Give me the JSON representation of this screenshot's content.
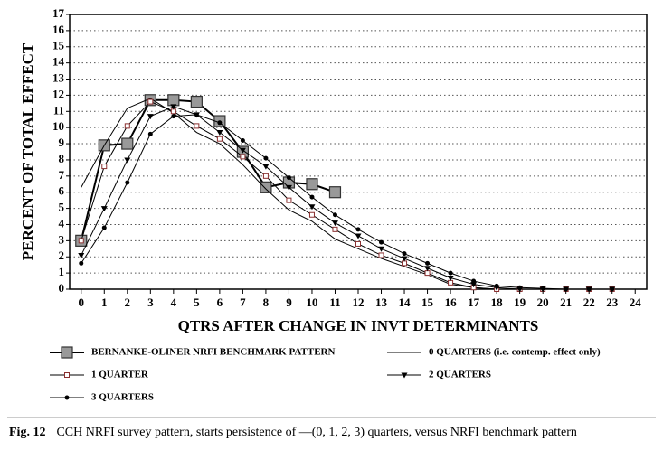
{
  "chart_data": {
    "type": "line",
    "x_label": "QTRS AFTER CHANGE IN INVT DETERMINANTS",
    "y_label": "PERCENT OF TOTAL EFFECT",
    "x": [
      0,
      1,
      2,
      3,
      4,
      5,
      6,
      7,
      8,
      9,
      10,
      11,
      12,
      13,
      14,
      15,
      16,
      17,
      18,
      19,
      20,
      21,
      22,
      23
    ],
    "xlim": [
      -0.5,
      24.5
    ],
    "xticks": [
      0,
      1,
      2,
      3,
      4,
      5,
      6,
      7,
      8,
      9,
      10,
      11,
      12,
      13,
      14,
      15,
      16,
      17,
      18,
      19,
      20,
      21,
      22,
      23,
      24
    ],
    "ylim": [
      0,
      17
    ],
    "yticks": [
      0,
      1,
      2,
      3,
      4,
      5,
      6,
      7,
      8,
      9,
      10,
      11,
      12,
      13,
      14,
      15,
      16,
      17
    ],
    "grid": true,
    "series": [
      {
        "name": "BERNANKE-OLINER NRFI BENCHMARK PATTERN",
        "color": "#000000",
        "marker": "big-square",
        "values": [
          3.0,
          8.9,
          9.0,
          11.7,
          11.7,
          11.6,
          10.4,
          8.5,
          6.3,
          6.6,
          6.5,
          6.0,
          null,
          null,
          null,
          null,
          null,
          null,
          null,
          null,
          null,
          null,
          null,
          null
        ]
      },
      {
        "name": "0 QUARTERS (i.e. contemp. effect only)",
        "color": "#000000",
        "marker": "none",
        "values": [
          6.3,
          8.9,
          11.2,
          11.8,
          10.9,
          9.7,
          9.0,
          7.7,
          6.2,
          4.9,
          4.2,
          3.1,
          2.5,
          1.9,
          1.4,
          0.9,
          0.3,
          0.1,
          0,
          0,
          0,
          0,
          0,
          0
        ]
      },
      {
        "name": "1 QUARTER",
        "color": "#000000",
        "marker": "open-square",
        "values": [
          3.0,
          7.6,
          10.1,
          11.6,
          11.0,
          10.1,
          9.3,
          8.2,
          7.0,
          5.5,
          4.6,
          3.7,
          2.8,
          2.1,
          1.6,
          1.0,
          0.4,
          0.1,
          0,
          0,
          0,
          0,
          0,
          0
        ]
      },
      {
        "name": "2 QUARTERS",
        "color": "#000000",
        "marker": "triangle",
        "values": [
          2.1,
          5.0,
          8.0,
          10.7,
          11.3,
          10.8,
          9.7,
          8.6,
          7.6,
          6.3,
          5.1,
          4.1,
          3.3,
          2.5,
          1.9,
          1.3,
          0.7,
          0.3,
          0.1,
          0,
          0,
          0,
          0,
          0
        ]
      },
      {
        "name": "3 QUARTERS",
        "color": "#000000",
        "marker": "dot",
        "values": [
          1.6,
          3.8,
          6.6,
          9.6,
          10.7,
          10.8,
          10.3,
          9.2,
          8.1,
          6.9,
          5.7,
          4.6,
          3.7,
          2.9,
          2.2,
          1.6,
          1.0,
          0.5,
          0.2,
          0.1,
          0.05,
          0,
          0,
          0
        ]
      }
    ],
    "figure_label": "Fig. 12",
    "caption": "CCH NRFI survey pattern, starts persistence of —(0, 1, 2, 3) quarters, versus NRFI benchmark pattern"
  }
}
